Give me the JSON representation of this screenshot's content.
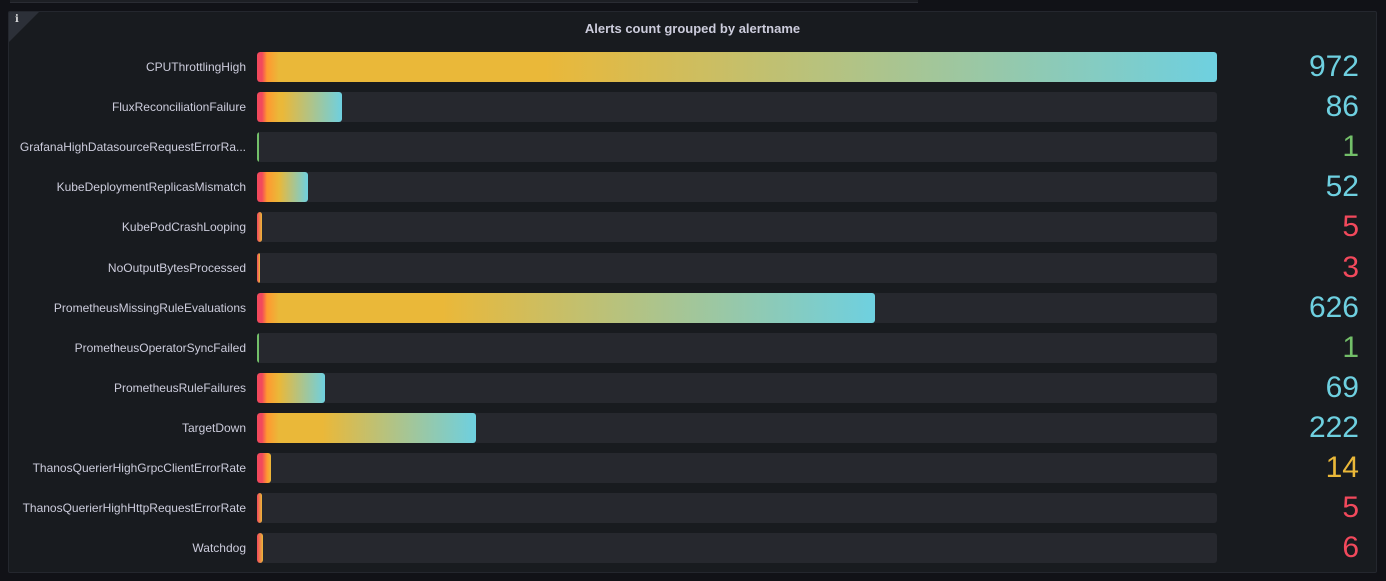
{
  "panel": {
    "title": "Alerts count grouped by alertname",
    "info_icon": "i"
  },
  "colors": {
    "red": "#f2495c",
    "orange": "#ff9830",
    "yellow": "#f2cc0c",
    "amber": "#eab839",
    "green": "#73bf69",
    "cyan": "#6ed0e0",
    "track": "#26282e"
  },
  "chart_data": {
    "type": "bar",
    "max": 972,
    "categories": [
      "CPUThrottlingHigh",
      "FluxReconciliationFailure",
      "GrafanaHighDatasourceRequestErrorRa...",
      "KubeDeploymentReplicasMismatch",
      "KubePodCrashLooping",
      "NoOutputBytesProcessed",
      "PrometheusMissingRuleEvaluations",
      "PrometheusOperatorSyncFailed",
      "PrometheusRuleFailures",
      "TargetDown",
      "ThanosQuerierHighGrpcClientErrorRate",
      "ThanosQuerierHighHttpRequestErrorRate",
      "Watchdog"
    ],
    "values": [
      972,
      86,
      1,
      52,
      5,
      3,
      626,
      1,
      69,
      222,
      14,
      5,
      6
    ],
    "value_colors": [
      "#6ed0e0",
      "#6ed0e0",
      "#73bf69",
      "#6ed0e0",
      "#f2495c",
      "#f2495c",
      "#6ed0e0",
      "#73bf69",
      "#6ed0e0",
      "#6ed0e0",
      "#eab839",
      "#f2495c",
      "#f2495c"
    ]
  }
}
